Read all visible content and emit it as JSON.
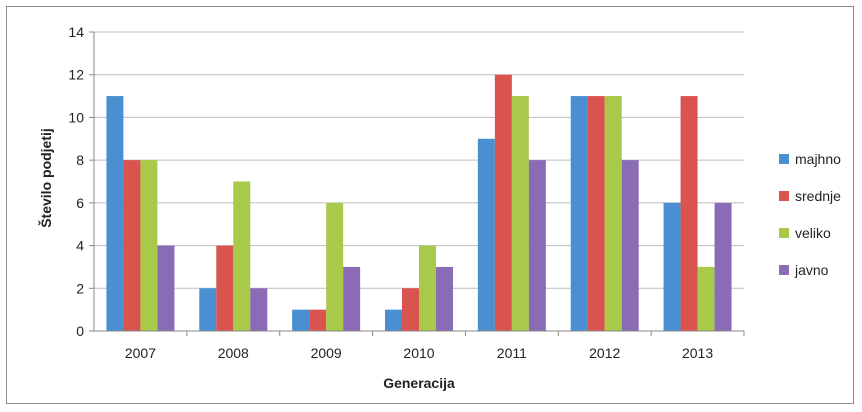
{
  "chart_data": {
    "type": "bar",
    "title": "",
    "xlabel": "Generacija",
    "ylabel": "Število podjetij",
    "ylim": [
      0,
      14
    ],
    "yticks": [
      "0",
      "2",
      "4",
      "6",
      "8",
      "10",
      "12",
      "14"
    ],
    "grid": true,
    "legend_position": "right",
    "categories": [
      "2007",
      "2008",
      "2009",
      "2010",
      "2011",
      "2012",
      "2013"
    ],
    "series": [
      {
        "name": "majhno",
        "color": "#4a8fd1",
        "values": [
          11,
          2,
          1,
          1,
          9,
          11,
          6
        ]
      },
      {
        "name": "srednje",
        "color": "#d9534f",
        "values": [
          8,
          4,
          1,
          2,
          12,
          11,
          11
        ]
      },
      {
        "name": "veliko",
        "color": "#a9c94a",
        "values": [
          8,
          7,
          6,
          4,
          11,
          11,
          3
        ]
      },
      {
        "name": "javno",
        "color": "#8a6bb5",
        "values": [
          4,
          2,
          3,
          3,
          8,
          8,
          6
        ]
      }
    ]
  }
}
